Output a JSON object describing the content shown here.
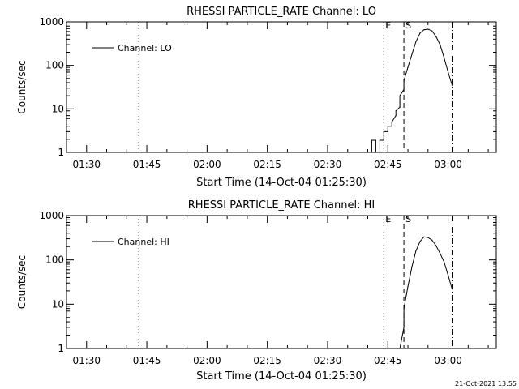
{
  "chart_data": [
    {
      "type": "line",
      "title": "RHESSI PARTICLE_RATE Channel: LO",
      "xlabel": "Start Time (14-Oct-04 01:25:30)",
      "ylabel": "Counts/sec",
      "yscale": "log",
      "ylim": [
        1,
        1000
      ],
      "y_ticks": [
        1,
        10,
        100,
        1000
      ],
      "y_tick_labels": [
        "1",
        "10",
        "100",
        "1000"
      ],
      "x_unit": "minutes",
      "xlim": [
        "01:25",
        "03:12"
      ],
      "x_ticks": [
        "01:30",
        "01:45",
        "02:00",
        "02:15",
        "02:30",
        "02:45",
        "03:00"
      ],
      "legend": {
        "label": "Channel: LO",
        "position": "top-left"
      },
      "markers": [
        {
          "label": "",
          "x": "01:43",
          "style": "dotted"
        },
        {
          "label": "E",
          "x": "02:44",
          "style": "dotted"
        },
        {
          "label": "S",
          "x": "02:49",
          "style": "dashed"
        },
        {
          "label": "",
          "x": "03:01",
          "style": "dashdot"
        }
      ],
      "series": [
        {
          "name": "Channel: LO",
          "points": [
            [
              "02:41",
              1
            ],
            [
              "02:41",
              1.9
            ],
            [
              "02:42",
              1.9
            ],
            [
              "02:42",
              1
            ],
            [
              "02:43",
              1
            ],
            [
              "02:43",
              1.9
            ],
            [
              "02:44",
              1.9
            ],
            [
              "02:44",
              3
            ],
            [
              "02:45",
              3
            ],
            [
              "02:45",
              4
            ],
            [
              "02:46",
              4
            ],
            [
              "02:46",
              5
            ],
            [
              "02:47",
              7
            ],
            [
              "02:47",
              9
            ],
            [
              "02:48",
              11
            ],
            [
              "02:48",
              14
            ],
            [
              "02:48",
              20
            ],
            [
              "02:49",
              28
            ],
            [
              "02:49",
              45
            ],
            [
              "02:50",
              90
            ],
            [
              "02:51",
              180
            ],
            [
              "02:52",
              350
            ],
            [
              "02:53",
              550
            ],
            [
              "02:54",
              660
            ],
            [
              "02:55",
              680
            ],
            [
              "02:56",
              620
            ],
            [
              "02:57",
              460
            ],
            [
              "02:58",
              300
            ],
            [
              "02:59",
              150
            ],
            [
              "03:00",
              70
            ],
            [
              "03:01",
              35
            ]
          ]
        }
      ]
    },
    {
      "type": "line",
      "title": "RHESSI PARTICLE_RATE Channel: HI",
      "xlabel": "Start Time (14-Oct-04 01:25:30)",
      "ylabel": "Counts/sec",
      "yscale": "log",
      "ylim": [
        1,
        1000
      ],
      "y_ticks": [
        1,
        10,
        100,
        1000
      ],
      "y_tick_labels": [
        "1",
        "10",
        "100",
        "1000"
      ],
      "x_unit": "minutes",
      "xlim": [
        "01:25",
        "03:12"
      ],
      "x_ticks": [
        "01:30",
        "01:45",
        "02:00",
        "02:15",
        "02:30",
        "02:45",
        "03:00"
      ],
      "legend": {
        "label": "Channel: HI",
        "position": "top-left"
      },
      "markers": [
        {
          "label": "",
          "x": "01:43",
          "style": "dotted"
        },
        {
          "label": "E",
          "x": "02:44",
          "style": "dotted"
        },
        {
          "label": "S",
          "x": "02:49",
          "style": "dashed"
        },
        {
          "label": "",
          "x": "03:01",
          "style": "dashdot"
        }
      ],
      "series": [
        {
          "name": "Channel: HI",
          "points": [
            [
              "02:48",
              1
            ],
            [
              "02:49",
              3
            ],
            [
              "02:49",
              8
            ],
            [
              "02:50",
              25
            ],
            [
              "02:51",
              70
            ],
            [
              "02:52",
              160
            ],
            [
              "02:53",
              260
            ],
            [
              "02:54",
              330
            ],
            [
              "02:55",
              320
            ],
            [
              "02:56",
              280
            ],
            [
              "02:57",
              210
            ],
            [
              "02:58",
              140
            ],
            [
              "02:59",
              90
            ],
            [
              "03:00",
              45
            ],
            [
              "03:01",
              22
            ]
          ]
        }
      ]
    }
  ],
  "footer": {
    "timestamp": "21-Oct-2021 13:55"
  }
}
